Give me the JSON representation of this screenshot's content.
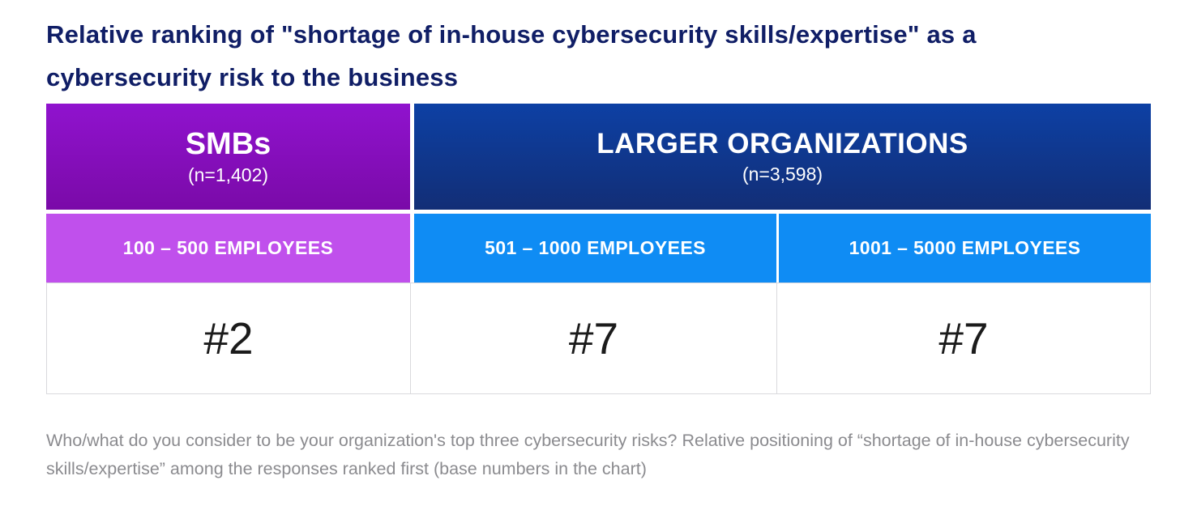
{
  "title": "Relative ranking of \"shortage of in-house cybersecurity skills/expertise\" as a cybersecurity risk to the business",
  "table": {
    "groups": [
      {
        "label": "SMBs",
        "n": "(n=1,402)"
      },
      {
        "label": "LARGER ORGANIZATIONS",
        "n": "(n=3,598)"
      }
    ],
    "segments": [
      "100 – 500 EMPLOYEES",
      "501 – 1000 EMPLOYEES",
      "1001 – 5000 EMPLOYEES"
    ],
    "rankings": [
      "#2",
      "#7",
      "#7"
    ]
  },
  "footnote": "Who/what do you consider to be your organization's top three cybersecurity risks? Relative positioning of “shortage of in-house cybersecurity skills/expertise” among the responses ranked first (base numbers in the chart)",
  "colors": {
    "title_navy": "#101e66",
    "smb_purple_top": "#9013ce",
    "smb_purple_bottom": "#7a0aa8",
    "smb_segment_purple": "#c050ec",
    "larger_blue_top": "#0d40a4",
    "larger_blue_bottom": "#122e76",
    "larger_segment_blue": "#0f8cf4",
    "value_cell_border": "#d9d9dd",
    "footnote_gray": "#8b8b8f"
  },
  "chart_data": {
    "type": "table",
    "title": "Relative ranking of \"shortage of in-house cybersecurity skills/expertise\" as a cybersecurity risk to the business",
    "column_groups": [
      {
        "label": "SMBs",
        "n": 1402,
        "columns": [
          "100 – 500 EMPLOYEES"
        ]
      },
      {
        "label": "LARGER ORGANIZATIONS",
        "n": 3598,
        "columns": [
          "501 – 1000 EMPLOYEES",
          "1001 – 5000 EMPLOYEES"
        ]
      }
    ],
    "columns": [
      "100 – 500 EMPLOYEES",
      "501 – 1000 EMPLOYEES",
      "1001 – 5000 EMPLOYEES"
    ],
    "values": [
      "#2",
      "#7",
      "#7"
    ],
    "footnote": "Who/what do you consider to be your organization's top three cybersecurity risks? Relative positioning of “shortage of in-house cybersecurity skills/expertise” among the responses ranked first (base numbers in the chart)",
    "legend_position": "none",
    "grid": false
  }
}
